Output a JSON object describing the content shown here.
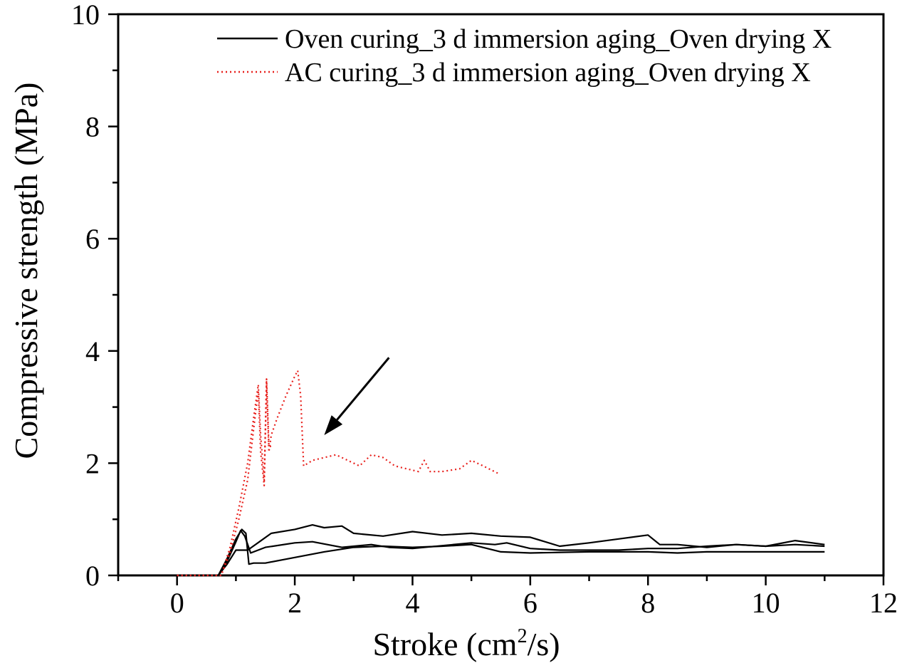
{
  "chart_data": {
    "type": "line",
    "title": "",
    "xlabel": "Stroke (cm",
    "xlabel_sup": "2",
    "xlabel_tail": "/s)",
    "ylabel": "Compressive strength (MPa)",
    "xlim": [
      -1,
      12
    ],
    "ylim": [
      0,
      10
    ],
    "x_ticks": [
      0,
      2,
      4,
      6,
      8,
      10,
      12
    ],
    "x_tick_labels": [
      "0",
      "2",
      "4",
      "6",
      "8",
      "10",
      "12"
    ],
    "y_ticks": [
      0,
      2,
      4,
      6,
      8,
      10
    ],
    "y_tick_labels": [
      "0",
      "2",
      "4",
      "6",
      "8",
      "10"
    ],
    "grid": false,
    "legend_position": "top-right",
    "legend": [
      {
        "label": "Oven curing_3 d immersion aging_Oven drying X",
        "style": "solid",
        "color": "#000000"
      },
      {
        "label": "AC curing_3 d immersion aging_Oven drying X",
        "style": "dotted",
        "color": "#e8201c"
      }
    ],
    "series": [
      {
        "group": 0,
        "color": "#000000",
        "style": "solid",
        "points": [
          [
            0,
            0
          ],
          [
            0.7,
            0
          ],
          [
            0.85,
            0.3
          ],
          [
            1.0,
            0.65
          ],
          [
            1.1,
            0.82
          ],
          [
            1.17,
            0.75
          ],
          [
            1.22,
            0.2
          ],
          [
            1.3,
            0.22
          ],
          [
            1.5,
            0.22
          ],
          [
            2.0,
            0.32
          ],
          [
            2.5,
            0.42
          ],
          [
            3.0,
            0.5
          ],
          [
            3.5,
            0.52
          ],
          [
            4.0,
            0.5
          ],
          [
            4.5,
            0.52
          ],
          [
            5.0,
            0.55
          ],
          [
            5.5,
            0.42
          ],
          [
            6.0,
            0.4
          ],
          [
            7.0,
            0.42
          ],
          [
            8.0,
            0.42
          ],
          [
            8.5,
            0.4
          ],
          [
            9.0,
            0.42
          ],
          [
            10.0,
            0.42
          ],
          [
            11.0,
            0.42
          ]
        ]
      },
      {
        "group": 0,
        "color": "#000000",
        "style": "solid",
        "points": [
          [
            0,
            0
          ],
          [
            0.7,
            0
          ],
          [
            0.85,
            0.25
          ],
          [
            1.0,
            0.6
          ],
          [
            1.08,
            0.8
          ],
          [
            1.15,
            0.7
          ],
          [
            1.25,
            0.4
          ],
          [
            1.5,
            0.5
          ],
          [
            2.0,
            0.58
          ],
          [
            2.3,
            0.6
          ],
          [
            2.8,
            0.5
          ],
          [
            3.3,
            0.55
          ],
          [
            3.6,
            0.5
          ],
          [
            4.0,
            0.48
          ],
          [
            5.0,
            0.58
          ],
          [
            5.4,
            0.55
          ],
          [
            5.6,
            0.58
          ],
          [
            6.0,
            0.48
          ],
          [
            6.5,
            0.45
          ],
          [
            7.5,
            0.45
          ],
          [
            8.0,
            0.48
          ],
          [
            8.5,
            0.48
          ],
          [
            9.0,
            0.52
          ],
          [
            9.5,
            0.55
          ],
          [
            10.0,
            0.52
          ],
          [
            10.5,
            0.55
          ],
          [
            11.0,
            0.52
          ]
        ]
      },
      {
        "group": 0,
        "color": "#000000",
        "style": "solid",
        "points": [
          [
            0,
            0
          ],
          [
            0.7,
            0
          ],
          [
            0.85,
            0.2
          ],
          [
            1.0,
            0.45
          ],
          [
            1.2,
            0.45
          ],
          [
            1.4,
            0.6
          ],
          [
            1.6,
            0.75
          ],
          [
            2.0,
            0.82
          ],
          [
            2.3,
            0.9
          ],
          [
            2.5,
            0.85
          ],
          [
            2.8,
            0.88
          ],
          [
            3.0,
            0.75
          ],
          [
            3.5,
            0.7
          ],
          [
            4.0,
            0.78
          ],
          [
            4.5,
            0.72
          ],
          [
            5.0,
            0.75
          ],
          [
            5.5,
            0.7
          ],
          [
            6.0,
            0.68
          ],
          [
            6.5,
            0.52
          ],
          [
            7.0,
            0.58
          ],
          [
            7.5,
            0.65
          ],
          [
            8.0,
            0.72
          ],
          [
            8.2,
            0.55
          ],
          [
            8.5,
            0.55
          ],
          [
            9.0,
            0.5
          ],
          [
            9.5,
            0.55
          ],
          [
            10.0,
            0.52
          ],
          [
            10.5,
            0.62
          ],
          [
            11.0,
            0.55
          ]
        ]
      },
      {
        "group": 1,
        "color": "#e8201c",
        "style": "dotted",
        "points": [
          [
            0,
            0
          ],
          [
            0.75,
            0
          ],
          [
            0.9,
            0.5
          ],
          [
            1.05,
            1.2
          ],
          [
            1.2,
            2.0
          ],
          [
            1.3,
            2.8
          ],
          [
            1.38,
            3.4
          ],
          [
            1.42,
            2.5
          ],
          [
            1.48,
            1.7
          ],
          [
            1.52,
            3.45
          ],
          [
            1.56,
            2.2
          ],
          [
            1.6,
            2.5
          ],
          [
            1.7,
            2.8
          ],
          [
            1.85,
            3.2
          ],
          [
            2.0,
            3.55
          ],
          [
            2.05,
            3.65
          ],
          [
            2.1,
            3.2
          ],
          [
            2.15,
            1.95
          ],
          [
            2.3,
            2.05
          ],
          [
            2.5,
            2.1
          ],
          [
            2.7,
            2.15
          ],
          [
            2.9,
            2.05
          ],
          [
            3.1,
            1.95
          ],
          [
            3.3,
            2.15
          ],
          [
            3.5,
            2.1
          ],
          [
            3.7,
            1.95
          ],
          [
            3.9,
            1.9
          ],
          [
            4.1,
            1.85
          ],
          [
            4.2,
            2.05
          ],
          [
            4.3,
            1.85
          ],
          [
            4.5,
            1.85
          ],
          [
            4.8,
            1.9
          ],
          [
            5.0,
            2.05
          ],
          [
            5.2,
            1.95
          ],
          [
            5.45,
            1.82
          ]
        ]
      },
      {
        "group": 1,
        "color": "#e8201c",
        "style": "dotted",
        "points": [
          [
            0,
            0
          ],
          [
            0.75,
            0
          ],
          [
            0.9,
            0.4
          ],
          [
            1.05,
            1.0
          ],
          [
            1.2,
            1.7
          ],
          [
            1.3,
            2.6
          ],
          [
            1.38,
            3.3
          ],
          [
            1.42,
            2.2
          ],
          [
            1.48,
            1.6
          ],
          [
            1.52,
            3.5
          ],
          [
            1.56,
            2.3
          ],
          [
            1.6,
            2.3
          ]
        ]
      }
    ],
    "annotations": [
      {
        "type": "arrow",
        "from": [
          3.6,
          3.88
        ],
        "to": [
          2.5,
          2.5
        ]
      }
    ]
  }
}
